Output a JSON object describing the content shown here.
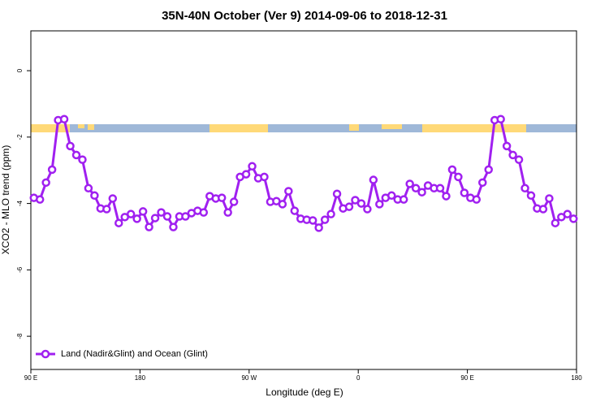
{
  "chart_data": {
    "type": "line",
    "title": "35N-40N October (Ver 9)   2014-09-06 to 2018-12-31",
    "xlabel": "Longitude (deg E)",
    "ylabel": "XCO2 - MLO trend (ppm)",
    "xlim": [
      90,
      540
    ],
    "ylim": [
      -9,
      1.2
    ],
    "xticks": [
      {
        "value": 90,
        "label": "90 E"
      },
      180,
      {
        "value": 270,
        "label": "90 W"
      },
      {
        "value": 360,
        "label": "0"
      },
      {
        "value": 450,
        "label": "90 E"
      },
      {
        "value": 540,
        "label": "180"
      }
    ],
    "yticks": [
      -8,
      -6,
      -4,
      -2,
      0
    ],
    "legend": "bottom-left",
    "x": [
      92.5,
      97.5,
      102.5,
      107.5,
      112.5,
      117.5,
      122.5,
      127.5,
      132.5,
      137.5,
      142.5,
      147.5,
      152.5,
      157.5,
      162.5,
      167.5,
      172.5,
      177.5,
      182.5,
      187.5,
      192.5,
      197.5,
      202.5,
      207.5,
      212.5,
      217.5,
      222.5,
      227.5,
      232.5,
      237.5,
      242.5,
      247.5,
      252.5,
      257.5,
      262.5,
      267.5,
      272.5,
      277.5,
      282.5,
      287.5,
      292.5,
      297.5,
      302.5,
      307.5,
      312.5,
      317.5,
      322.5,
      327.5,
      332.5,
      337.5,
      342.5,
      347.5,
      352.5,
      357.5,
      362.5,
      367.5,
      372.5,
      377.5,
      382.5,
      387.5,
      392.5,
      397.5,
      402.5,
      407.5,
      412.5,
      417.5,
      422.5,
      427.5,
      432.5,
      437.5,
      442.5,
      447.5,
      452.5,
      457.5,
      462.5,
      467.5,
      472.5,
      477.5,
      482.5,
      487.5,
      492.5,
      497.5,
      502.5,
      507.5,
      512.5,
      517.5,
      522.5,
      527.5,
      532.5,
      537.5
    ],
    "series": [
      {
        "name": "Land (Nadir&Glint) and Ocean (Glint)",
        "color": "#a020f0",
        "values": [
          -3.83,
          -3.88,
          -3.37,
          -2.98,
          -1.49,
          -1.46,
          -2.27,
          -2.54,
          -2.68,
          -3.54,
          -3.76,
          -4.15,
          -4.17,
          -3.85,
          -4.59,
          -4.41,
          -4.32,
          -4.46,
          -4.24,
          -4.71,
          -4.44,
          -4.27,
          -4.39,
          -4.71,
          -4.39,
          -4.39,
          -4.29,
          -4.22,
          -4.27,
          -3.78,
          -3.85,
          -3.83,
          -4.27,
          -3.95,
          -3.2,
          -3.12,
          -2.88,
          -3.24,
          -3.2,
          -3.95,
          -3.93,
          -4.02,
          -3.63,
          -4.22,
          -4.46,
          -4.49,
          -4.51,
          -4.73,
          -4.49,
          -4.32,
          -3.71,
          -4.15,
          -4.1,
          -3.9,
          -4.0,
          -4.17,
          -3.29,
          -4.02,
          -3.83,
          -3.76,
          -3.88,
          -3.88,
          -3.41,
          -3.54,
          -3.66,
          -3.46,
          -3.54,
          -3.54,
          -3.78,
          -2.98,
          -3.2,
          -3.68,
          -3.83,
          -3.88,
          -3.37,
          -2.98,
          -1.49,
          -1.46,
          -2.27,
          -2.54,
          -2.68,
          -3.54,
          -3.76,
          -4.15,
          -4.17,
          -3.85,
          -4.59,
          -4.41,
          -4.32,
          -4.46
        ]
      }
    ]
  }
}
